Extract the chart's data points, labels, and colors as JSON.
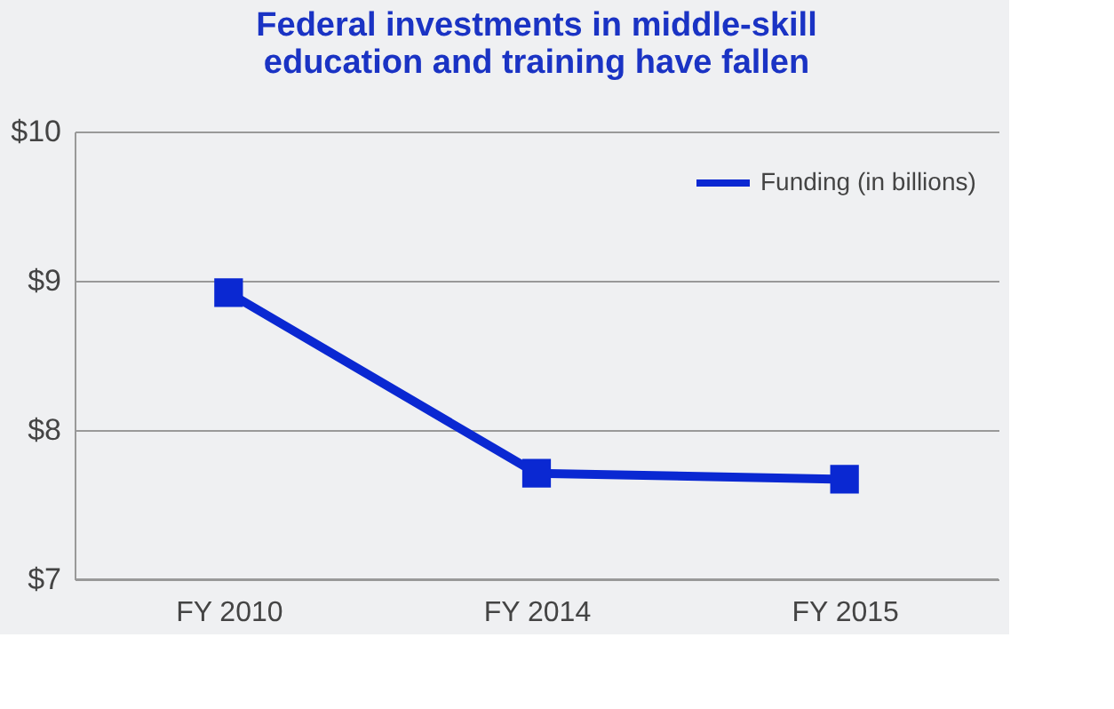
{
  "chart_data": {
    "type": "line",
    "title": "Federal investments in middle-skill education and training have fallen",
    "categories": [
      "FY 2010",
      "FY 2014",
      "FY 2015"
    ],
    "series": [
      {
        "name": "Funding (in billions)",
        "color": "#0a28d2",
        "values": [
          8.92,
          7.71,
          7.67
        ]
      }
    ],
    "ylim": [
      7,
      10
    ],
    "yticks": [
      {
        "value": 7,
        "label": "$7"
      },
      {
        "value": 8,
        "label": "$8"
      },
      {
        "value": 9,
        "label": "$9"
      },
      {
        "value": 10,
        "label": "$10"
      }
    ],
    "grid": "y",
    "legend": "top right",
    "marker": "square",
    "line_style": "solid"
  }
}
